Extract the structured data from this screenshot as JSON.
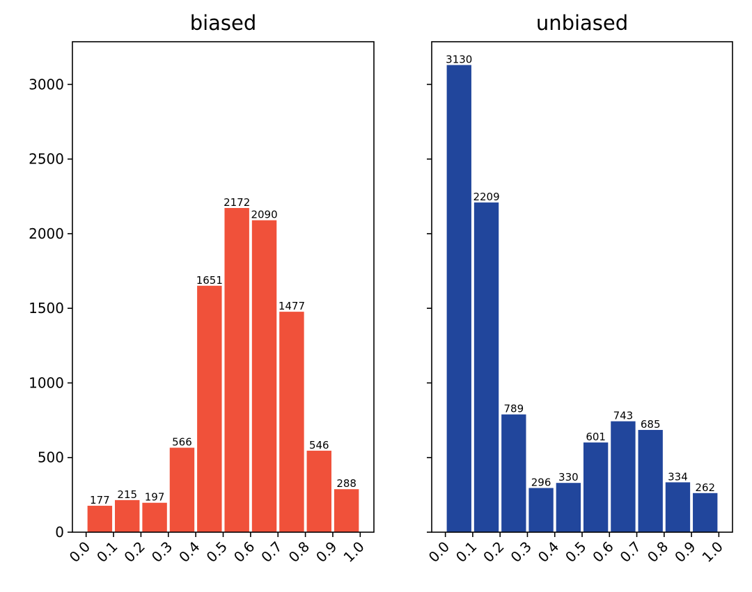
{
  "chart_data": [
    {
      "type": "bar",
      "title": "biased",
      "color": "#f0513a",
      "bin_edges": [
        0.0,
        0.1,
        0.2,
        0.3,
        0.4,
        0.5,
        0.6,
        0.7,
        0.8,
        0.9,
        1.0
      ],
      "x_tick_labels": [
        "0.0",
        "0.1",
        "0.2",
        "0.3",
        "0.4",
        "0.5",
        "0.6",
        "0.7",
        "0.8",
        "0.9",
        "1.0"
      ],
      "values": [
        177,
        215,
        197,
        566,
        1651,
        2172,
        2090,
        1477,
        546,
        288
      ],
      "data_labels": [
        "177",
        "215",
        "197",
        "566",
        "1651",
        "2172",
        "2090",
        "1477",
        "546",
        "288"
      ],
      "y_tick_values": [
        0,
        500,
        1000,
        1500,
        2000,
        2500,
        3000
      ],
      "y_tick_labels": [
        "0",
        "500",
        "1000",
        "1500",
        "2000",
        "2500",
        "3000"
      ],
      "ylim": [
        0,
        3286
      ],
      "xlim": [
        -0.05,
        1.05
      ],
      "grid": false
    },
    {
      "type": "bar",
      "title": "unbiased",
      "color": "#21469c",
      "bin_edges": [
        0.0,
        0.1,
        0.2,
        0.3,
        0.4,
        0.5,
        0.6,
        0.7,
        0.8,
        0.9,
        1.0
      ],
      "x_tick_labels": [
        "0.0",
        "0.1",
        "0.2",
        "0.3",
        "0.4",
        "0.5",
        "0.6",
        "0.7",
        "0.8",
        "0.9",
        "1.0"
      ],
      "values": [
        3130,
        2209,
        789,
        296,
        330,
        601,
        743,
        685,
        334,
        262
      ],
      "data_labels": [
        "3130",
        "2209",
        "789",
        "296",
        "330",
        "601",
        "743",
        "685",
        "334",
        "262"
      ],
      "y_tick_values": [
        0,
        500,
        1000,
        1500,
        2000,
        2500,
        3000
      ],
      "y_tick_labels": [],
      "ylim": [
        0,
        3286
      ],
      "xlim": [
        -0.05,
        1.05
      ],
      "grid": false,
      "sharey": true
    }
  ]
}
